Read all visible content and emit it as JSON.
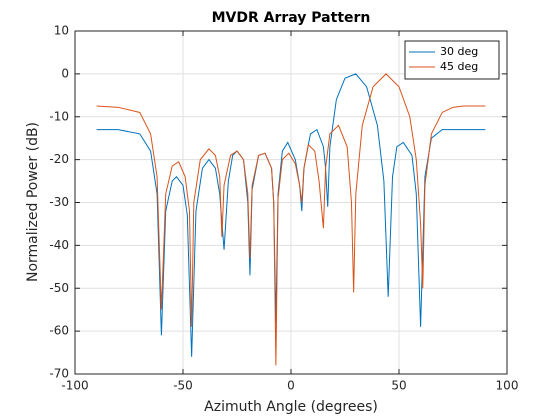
{
  "chart_data": {
    "type": "line",
    "title": "MVDR Array Pattern",
    "xlabel": "Azimuth Angle (degrees)",
    "ylabel": "Normalized Power (dB)",
    "xlim": [
      -100,
      100
    ],
    "ylim": [
      -70,
      10
    ],
    "xticks": [
      -100,
      -50,
      0,
      50,
      100
    ],
    "yticks": [
      -70,
      -60,
      -50,
      -40,
      -30,
      -20,
      -10,
      0,
      10
    ],
    "grid": true,
    "legend": "northeast",
    "series": [
      {
        "name": "30 deg",
        "color": "#0072BD",
        "x": [
          -90,
          -80,
          -70,
          -65,
          -62,
          -60,
          -58,
          -55,
          -53,
          -50,
          -48,
          -46,
          -44,
          -41,
          -38,
          -35,
          -33,
          -31,
          -29,
          -27,
          -25,
          -22,
          -20,
          -19,
          -18,
          -15,
          -12,
          -9,
          -8,
          -7,
          -6,
          -4,
          -1.5,
          2,
          4,
          5,
          6,
          9,
          12,
          15,
          16,
          17,
          18,
          21,
          25,
          30,
          35,
          40,
          43,
          45,
          47,
          49,
          52,
          56,
          58,
          60,
          62,
          65,
          70,
          80,
          90
        ],
        "values": [
          -13,
          -13,
          -14,
          -18,
          -28,
          -61,
          -32,
          -25,
          -24,
          -26,
          -33,
          -66,
          -32,
          -22,
          -20,
          -22,
          -28,
          -41,
          -25,
          -19,
          -18,
          -20,
          -30,
          -47,
          -27,
          -19,
          -18.5,
          -22,
          -30,
          -58,
          -28,
          -18,
          -16,
          -20,
          -26,
          -32,
          -22,
          -14,
          -13,
          -17,
          -22,
          -31,
          -17,
          -6,
          -1,
          0,
          -3,
          -12,
          -25,
          -52,
          -24,
          -17,
          -16,
          -19,
          -28,
          -59,
          -24,
          -15,
          -13,
          -13,
          -13
        ]
      },
      {
        "name": "45 deg",
        "color": "#D95319",
        "x": [
          -90,
          -80,
          -70,
          -65,
          -62,
          -60,
          -58,
          -55,
          -52,
          -49,
          -47,
          -46,
          -45,
          -42,
          -38,
          -35,
          -33,
          -32,
          -31,
          -28,
          -25,
          -22,
          -20,
          -19,
          -18,
          -15,
          -12,
          -9,
          -8,
          -7,
          -6,
          -4,
          -1,
          2,
          4,
          5,
          6,
          8,
          11,
          13,
          15,
          16,
          18,
          22,
          26,
          28,
          29,
          30,
          33,
          38,
          44,
          50,
          55,
          58,
          60,
          61,
          62,
          65,
          70,
          75,
          80,
          90
        ],
        "values": [
          -7.5,
          -7.8,
          -9,
          -14,
          -24,
          -55,
          -28,
          -21.5,
          -20.5,
          -24,
          -32,
          -59,
          -30,
          -20,
          -17.5,
          -19,
          -24,
          -38,
          -26,
          -19,
          -18,
          -20,
          -28,
          -43,
          -26,
          -19,
          -18.5,
          -22,
          -30,
          -68,
          -29,
          -20,
          -18.5,
          -21,
          -26,
          -30,
          -22,
          -16.5,
          -18,
          -25,
          -36,
          -22,
          -14,
          -12,
          -17,
          -30,
          -51,
          -28,
          -12,
          -3,
          0,
          -3,
          -10,
          -20,
          -35,
          -50,
          -26,
          -14,
          -9,
          -7.8,
          -7.5,
          -7.5
        ]
      }
    ]
  }
}
